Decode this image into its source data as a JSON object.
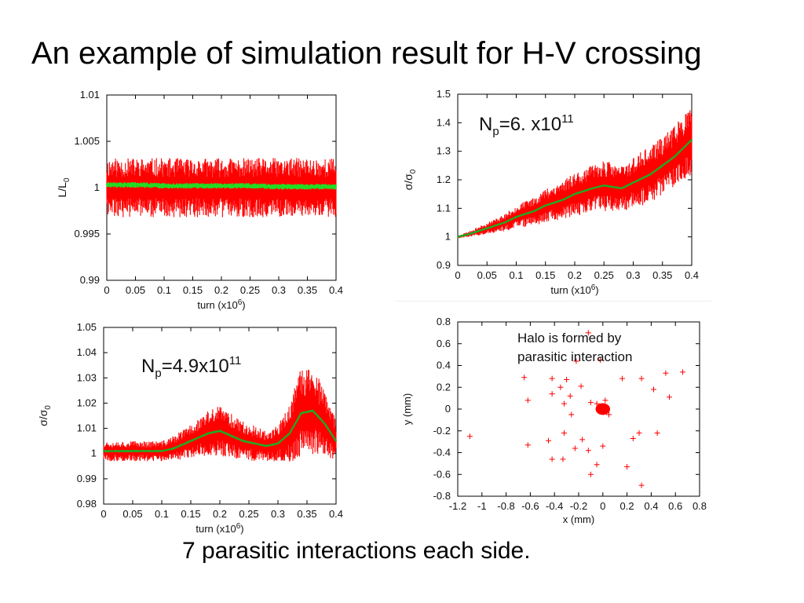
{
  "slide": {
    "title": "An example of simulation result for H-V crossing",
    "footer": "7 parasitic interactions each side."
  },
  "chart_data": [
    {
      "id": "luminosity",
      "type": "line",
      "xlabel_main": "turn (x10",
      "xlabel_sup": "6",
      "xlabel_end": ")",
      "ylabel_main": "L/L",
      "ylabel_sub": "0",
      "xlim": [
        0,
        0.4
      ],
      "ylim": [
        0.99,
        1.01
      ],
      "xticks": [
        "0",
        "0.05",
        "0.1",
        "0.15",
        "0.2",
        "0.25",
        "0.3",
        "0.35",
        "0.4"
      ],
      "yticks": [
        "0.99",
        "0.995",
        "1",
        "1.005",
        "1.01"
      ],
      "series": [
        {
          "color": "#ff0000",
          "x": [
            0,
            0.05,
            0.1,
            0.15,
            0.2,
            0.25,
            0.3,
            0.35,
            0.4
          ],
          "y": [
            1.0,
            1.0,
            1.0,
            1.0,
            1.0,
            1.0,
            1.0,
            1.0,
            1.0
          ],
          "band": [
            0.0032,
            0.0032,
            0.0032,
            0.0032,
            0.0032,
            0.0032,
            0.0032,
            0.0032,
            0.0032
          ]
        },
        {
          "color": "#22dd22",
          "x": [
            0,
            0.05,
            0.1,
            0.15,
            0.2,
            0.25,
            0.3,
            0.35,
            0.4
          ],
          "y": [
            1.0003,
            1.0003,
            1.0002,
            1.0002,
            1.0002,
            1.0002,
            1.0001,
            1.0001,
            1.0001
          ],
          "band": [
            0.0003,
            0.0003,
            0.0003,
            0.0003,
            0.0003,
            0.0003,
            0.0003,
            0.0003,
            0.0003
          ]
        }
      ]
    },
    {
      "id": "beam-size-6e11",
      "type": "line",
      "annotation": {
        "main": "N",
        "sub": "p",
        "mid": "=6. x10",
        "sup": "11"
      },
      "xlabel_main": "turn (x10",
      "xlabel_sup": "6",
      "xlabel_end": ")",
      "ylabel_main": "σ/σ",
      "ylabel_sub": "0",
      "xlim": [
        0,
        0.4
      ],
      "ylim": [
        0.9,
        1.5
      ],
      "xticks": [
        "0",
        "0.05",
        "0.1",
        "0.15",
        "0.2",
        "0.25",
        "0.3",
        "0.35",
        "0.4"
      ],
      "yticks": [
        "0.9",
        "1",
        "1.1",
        "1.2",
        "1.3",
        "1.4",
        "1.5"
      ],
      "series": [
        {
          "color": "#ff0000",
          "x": [
            0,
            0.02,
            0.05,
            0.08,
            0.1,
            0.13,
            0.15,
            0.18,
            0.2,
            0.23,
            0.25,
            0.28,
            0.3,
            0.33,
            0.35,
            0.37,
            0.39,
            0.4
          ],
          "y": [
            1.0,
            1.01,
            1.03,
            1.05,
            1.07,
            1.09,
            1.11,
            1.13,
            1.15,
            1.17,
            1.18,
            1.17,
            1.19,
            1.22,
            1.25,
            1.28,
            1.32,
            1.33
          ],
          "band": [
            0.005,
            0.01,
            0.02,
            0.03,
            0.04,
            0.05,
            0.06,
            0.07,
            0.08,
            0.08,
            0.09,
            0.08,
            0.09,
            0.1,
            0.1,
            0.11,
            0.12,
            0.12
          ]
        },
        {
          "color": "#22aa22",
          "x": [
            0,
            0.02,
            0.05,
            0.08,
            0.1,
            0.13,
            0.15,
            0.18,
            0.2,
            0.23,
            0.25,
            0.28,
            0.3,
            0.33,
            0.35,
            0.37,
            0.39,
            0.4
          ],
          "y": [
            1.0,
            1.01,
            1.03,
            1.05,
            1.07,
            1.09,
            1.11,
            1.13,
            1.15,
            1.17,
            1.18,
            1.17,
            1.19,
            1.22,
            1.25,
            1.28,
            1.32,
            1.34
          ],
          "band": [
            0.004,
            0.004,
            0.004,
            0.004,
            0.004,
            0.004,
            0.004,
            0.004,
            0.004,
            0.004,
            0.004,
            0.004,
            0.004,
            0.004,
            0.004,
            0.004,
            0.004,
            0.004
          ]
        }
      ]
    },
    {
      "id": "beam-size-4_9e11",
      "type": "line",
      "annotation": {
        "main": "N",
        "sub": "p",
        "mid": "=4.9x10",
        "sup": "11"
      },
      "xlabel_main": "turn (x10",
      "xlabel_sup": "6",
      "xlabel_end": ")",
      "ylabel_main": "σ/σ",
      "ylabel_sub": "0",
      "xlim": [
        0,
        0.4
      ],
      "ylim": [
        0.98,
        1.05
      ],
      "xticks": [
        "0",
        "0.05",
        "0.1",
        "0.15",
        "0.2",
        "0.25",
        "0.3",
        "0.35",
        "0.4"
      ],
      "yticks": [
        "0.98",
        "0.99",
        "1",
        "1.01",
        "1.02",
        "1.03",
        "1.04",
        "1.05"
      ],
      "series": [
        {
          "color": "#ff0000",
          "x": [
            0,
            0.05,
            0.1,
            0.12,
            0.14,
            0.16,
            0.18,
            0.2,
            0.22,
            0.24,
            0.26,
            0.28,
            0.3,
            0.32,
            0.34,
            0.36,
            0.38,
            0.4
          ],
          "y": [
            1.001,
            1.001,
            1.001,
            1.002,
            1.004,
            1.006,
            1.008,
            1.009,
            1.007,
            1.005,
            1.004,
            1.003,
            1.004,
            1.008,
            1.016,
            1.017,
            1.012,
            1.005
          ],
          "band": [
            0.004,
            0.004,
            0.004,
            0.005,
            0.006,
            0.007,
            0.009,
            0.01,
            0.009,
            0.008,
            0.007,
            0.006,
            0.007,
            0.012,
            0.018,
            0.018,
            0.013,
            0.008
          ]
        },
        {
          "color": "#22aa22",
          "x": [
            0,
            0.05,
            0.1,
            0.12,
            0.14,
            0.16,
            0.18,
            0.2,
            0.22,
            0.24,
            0.26,
            0.28,
            0.3,
            0.32,
            0.34,
            0.36,
            0.38,
            0.4
          ],
          "y": [
            1.001,
            1.001,
            1.001,
            1.002,
            1.004,
            1.006,
            1.008,
            1.009,
            1.007,
            1.005,
            1.004,
            1.003,
            1.004,
            1.008,
            1.016,
            1.017,
            1.012,
            1.005
          ],
          "band": [
            0.0005,
            0.0005,
            0.0005,
            0.0005,
            0.0005,
            0.0005,
            0.0005,
            0.0005,
            0.0005,
            0.0005,
            0.0005,
            0.0005,
            0.0005,
            0.0005,
            0.0005,
            0.0005,
            0.0005,
            0.0005
          ]
        }
      ]
    },
    {
      "id": "halo",
      "type": "scatter",
      "annotation_lines": [
        "Halo is formed by",
        "parasitic interaction"
      ],
      "xlabel": "x (mm)",
      "ylabel": "y (mm)",
      "xlim": [
        -1.2,
        0.8
      ],
      "ylim": [
        -0.8,
        0.8
      ],
      "xticks": [
        "-1.2",
        "-1",
        "-0.8",
        "-0.6",
        "-0.4",
        "-0.2",
        "0",
        "0.2",
        "0.4",
        "0.6",
        "0.8"
      ],
      "yticks": [
        "-0.8",
        "-0.6",
        "-0.4",
        "-0.2",
        "0",
        "0.2",
        "0.4",
        "0.6",
        "0.8"
      ],
      "color": "#ff0000",
      "core": {
        "x": 0.0,
        "y": 0.0,
        "radius": 0.06
      },
      "points": [
        [
          -0.12,
          0.7
        ],
        [
          -0.22,
          0.44
        ],
        [
          -0.02,
          0.45
        ],
        [
          -0.65,
          0.29
        ],
        [
          -0.3,
          0.27
        ],
        [
          -0.42,
          0.28
        ],
        [
          -0.35,
          0.2
        ],
        [
          -0.18,
          0.21
        ],
        [
          -0.27,
          0.12
        ],
        [
          -0.1,
          0.06
        ],
        [
          -0.42,
          0.14
        ],
        [
          -0.62,
          0.08
        ],
        [
          -0.32,
          0.05
        ],
        [
          0.16,
          0.28
        ],
        [
          0.32,
          0.28
        ],
        [
          0.52,
          0.33
        ],
        [
          0.42,
          0.18
        ],
        [
          0.66,
          0.34
        ],
        [
          0.55,
          0.11
        ],
        [
          -0.26,
          -0.05
        ],
        [
          -1.1,
          -0.25
        ],
        [
          -0.45,
          -0.29
        ],
        [
          -0.62,
          -0.33
        ],
        [
          -0.32,
          -0.22
        ],
        [
          -0.17,
          -0.28
        ],
        [
          -0.23,
          -0.36
        ],
        [
          -0.42,
          -0.46
        ],
        [
          -0.33,
          -0.46
        ],
        [
          -0.05,
          -0.51
        ],
        [
          -0.1,
          -0.6
        ],
        [
          -0.12,
          -0.38
        ],
        [
          0.0,
          -0.34
        ],
        [
          0.25,
          -0.27
        ],
        [
          0.3,
          -0.22
        ],
        [
          0.45,
          -0.22
        ],
        [
          0.2,
          -0.53
        ],
        [
          0.32,
          -0.7
        ],
        [
          0.05,
          -0.05
        ],
        [
          -0.05,
          0.05
        ],
        [
          0.02,
          0.08
        ]
      ]
    }
  ]
}
